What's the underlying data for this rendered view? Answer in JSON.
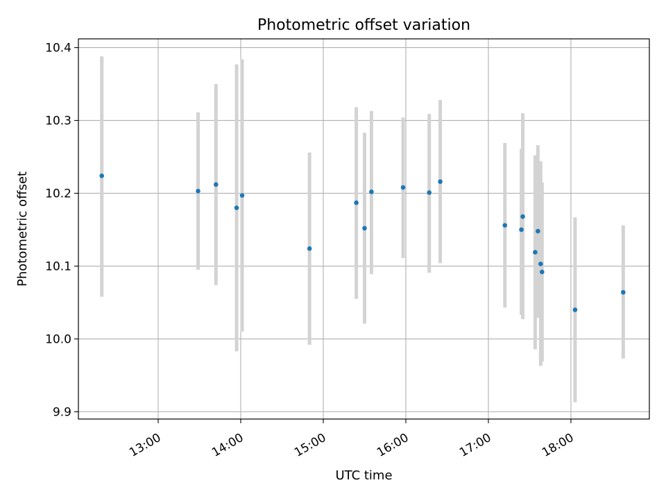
{
  "chart_data": {
    "type": "scatter",
    "title": "Photometric offset variation",
    "xlabel": "UTC time",
    "ylabel": "Photometric offset",
    "x_ticks": [
      "13:00",
      "14:00",
      "15:00",
      "16:00",
      "17:00",
      "18:00"
    ],
    "y_ticks": [
      "9.9",
      "10.0",
      "10.1",
      "10.2",
      "10.3",
      "10.4"
    ],
    "ylim": [
      9.89,
      10.412
    ],
    "xlim": [
      "12:02",
      "18:57"
    ],
    "grid": true,
    "point_color": "#1f77b4",
    "errorbar_color": "#d3d3d3",
    "points": [
      {
        "t": "12:19",
        "y": 10.224,
        "lo": 10.058,
        "hi": 10.388
      },
      {
        "t": "13:29",
        "y": 10.203,
        "lo": 10.095,
        "hi": 10.311
      },
      {
        "t": "13:42",
        "y": 10.212,
        "lo": 10.074,
        "hi": 10.35
      },
      {
        "t": "13:57",
        "y": 10.18,
        "lo": 9.983,
        "hi": 10.377
      },
      {
        "t": "14:01",
        "y": 10.197,
        "lo": 10.01,
        "hi": 10.384
      },
      {
        "t": "14:50",
        "y": 10.124,
        "lo": 9.992,
        "hi": 10.256
      },
      {
        "t": "15:24",
        "y": 10.187,
        "lo": 10.055,
        "hi": 10.318
      },
      {
        "t": "15:30",
        "y": 10.152,
        "lo": 10.021,
        "hi": 10.283
      },
      {
        "t": "15:35",
        "y": 10.202,
        "lo": 10.089,
        "hi": 10.313
      },
      {
        "t": "15:58",
        "y": 10.208,
        "lo": 10.111,
        "hi": 10.304
      },
      {
        "t": "16:17",
        "y": 10.201,
        "lo": 10.091,
        "hi": 10.309
      },
      {
        "t": "16:25",
        "y": 10.216,
        "lo": 10.104,
        "hi": 10.328
      },
      {
        "t": "17:12",
        "y": 10.156,
        "lo": 10.043,
        "hi": 10.269
      },
      {
        "t": "17:24",
        "y": 10.15,
        "lo": 10.033,
        "hi": 10.261
      },
      {
        "t": "17:25",
        "y": 10.168,
        "lo": 10.027,
        "hi": 10.31
      },
      {
        "t": "17:34",
        "y": 10.119,
        "lo": 9.986,
        "hi": 10.252
      },
      {
        "t": "17:36",
        "y": 10.148,
        "lo": 10.029,
        "hi": 10.266
      },
      {
        "t": "17:38",
        "y": 10.103,
        "lo": 9.963,
        "hi": 10.244
      },
      {
        "t": "17:39",
        "y": 10.092,
        "lo": 9.969,
        "hi": 10.215
      },
      {
        "t": "18:03",
        "y": 10.04,
        "lo": 9.913,
        "hi": 10.167
      },
      {
        "t": "18:38",
        "y": 10.064,
        "lo": 9.973,
        "hi": 10.156
      }
    ]
  }
}
